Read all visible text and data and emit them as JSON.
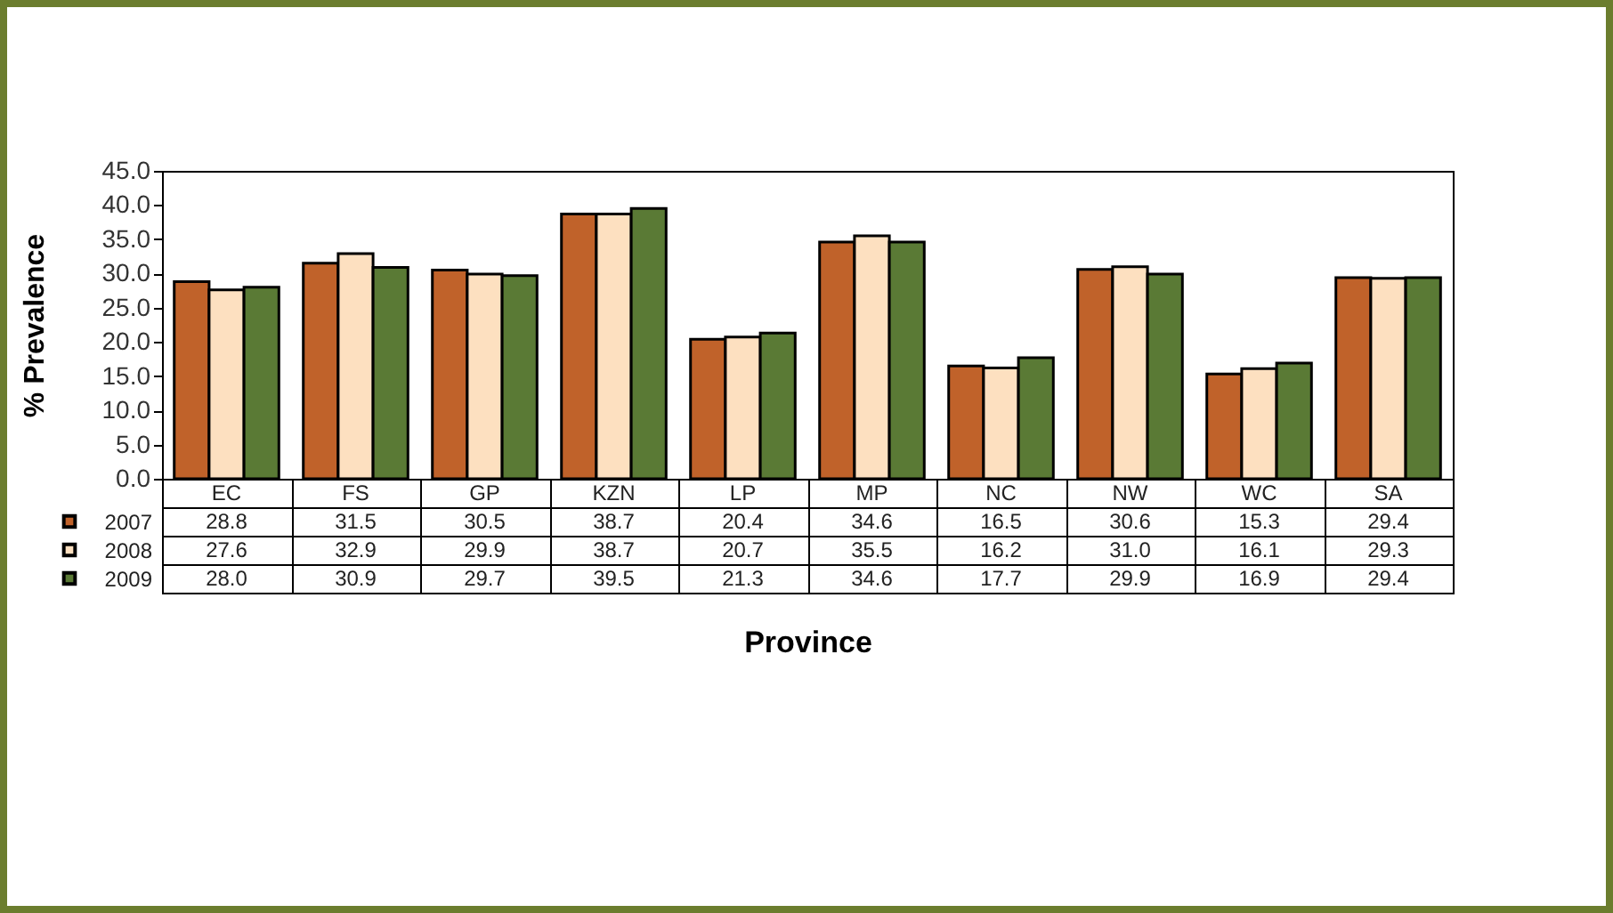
{
  "chart_data": {
    "type": "bar",
    "xlabel": "Province",
    "ylabel": "% Prevalence",
    "categories": [
      "EC",
      "FS",
      "GP",
      "KZN",
      "LP",
      "MP",
      "NC",
      "NW",
      "WC",
      "SA"
    ],
    "series": [
      {
        "name": "2007",
        "color": "#c0622a",
        "values": [
          28.8,
          31.5,
          30.5,
          38.7,
          20.4,
          34.6,
          16.5,
          30.6,
          15.3,
          29.4
        ],
        "value_labels": [
          "28.8",
          "31.5",
          "30.5",
          "38.7",
          "20.4",
          "34.6",
          "16.5",
          "30.6",
          "15.3",
          "29.4"
        ]
      },
      {
        "name": "2008",
        "color": "#fde0c0",
        "values": [
          27.6,
          32.9,
          29.9,
          38.7,
          20.7,
          35.5,
          16.2,
          31.0,
          16.1,
          29.3
        ],
        "value_labels": [
          "27.6",
          "32.9",
          "29.9",
          "38.7",
          "20.7",
          "35.5",
          "16.2",
          "31.0",
          "16.1",
          "29.3"
        ]
      },
      {
        "name": "2009",
        "color": "#5a7a35",
        "values": [
          28.0,
          30.9,
          29.7,
          39.5,
          21.3,
          34.6,
          17.7,
          29.9,
          16.9,
          29.4
        ],
        "value_labels": [
          "28.0",
          "30.9",
          "29.7",
          "39.5",
          "21.3",
          "34.6",
          "17.7",
          "29.9",
          "16.9",
          "29.4"
        ]
      }
    ],
    "ylim": [
      0,
      45
    ],
    "yticks": [
      {
        "value": 0,
        "label": "0.0"
      },
      {
        "value": 5,
        "label": "5.0"
      },
      {
        "value": 10,
        "label": "10.0"
      },
      {
        "value": 15,
        "label": "15.0"
      },
      {
        "value": 20,
        "label": "20.0"
      },
      {
        "value": 25,
        "label": "25.0"
      },
      {
        "value": 30,
        "label": "30.0"
      },
      {
        "value": 35,
        "label": "35.0"
      },
      {
        "value": 40,
        "label": "40.0"
      },
      {
        "value": 45,
        "label": "45.0"
      }
    ],
    "legend": "bottom left"
  }
}
